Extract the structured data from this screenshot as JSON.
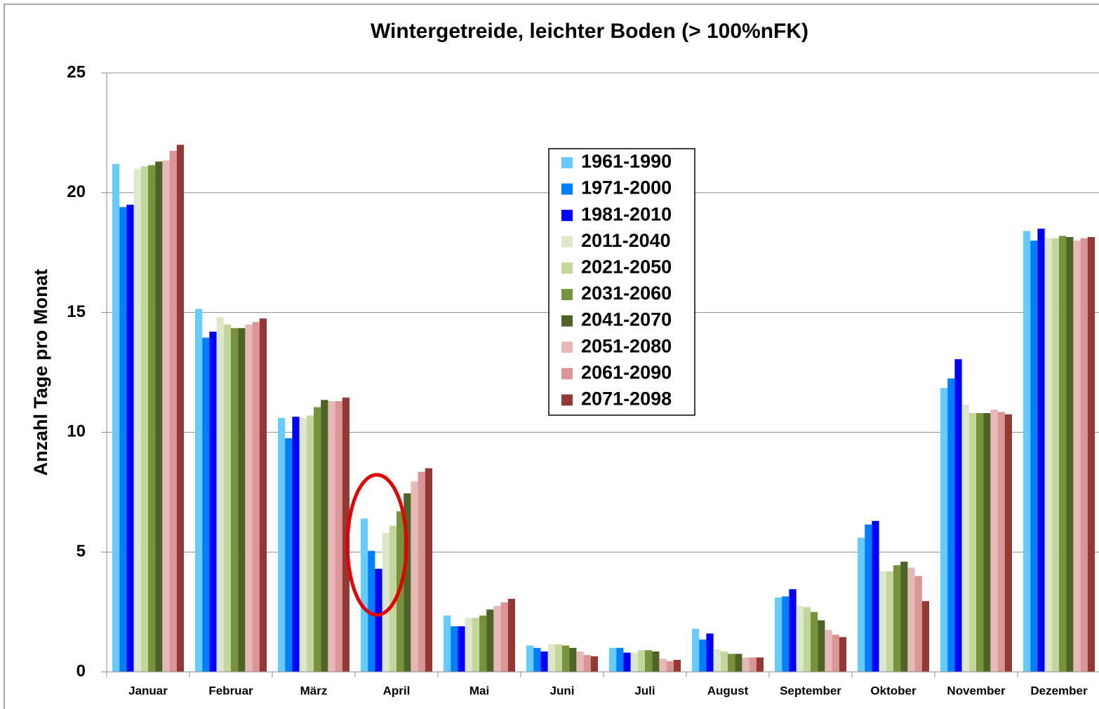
{
  "chart_data": {
    "type": "bar",
    "title": "Wintergetreide, leichter Boden (> 100%nFK)",
    "y_label": "Anzahl Tage pro Monat",
    "categories": [
      "Januar",
      "Februar",
      "März",
      "April",
      "Mai",
      "Juni",
      "Juli",
      "August",
      "September",
      "Oktober",
      "November",
      "Dezember"
    ],
    "series": [
      {
        "name": "1961-1990",
        "color": "#66ccff",
        "values": [
          21.2,
          15.15,
          10.6,
          6.4,
          2.35,
          1.1,
          1.0,
          1.8,
          3.1,
          5.6,
          11.85,
          18.4
        ]
      },
      {
        "name": "1971-2000",
        "color": "#0080ff",
        "values": [
          19.4,
          13.95,
          9.75,
          5.05,
          1.9,
          1.0,
          1.0,
          1.35,
          3.15,
          6.15,
          12.25,
          18.0
        ]
      },
      {
        "name": "1981-2010",
        "color": "#0000ff",
        "values": [
          19.5,
          14.2,
          10.65,
          4.3,
          1.9,
          0.85,
          0.8,
          1.6,
          3.45,
          6.3,
          13.05,
          18.5
        ]
      },
      {
        "name": "2011-2040",
        "color": "#dde8c8",
        "values": [
          21.0,
          14.8,
          10.6,
          5.8,
          2.25,
          1.15,
          0.8,
          0.95,
          2.75,
          4.2,
          11.15,
          18.1
        ]
      },
      {
        "name": "2021-2050",
        "color": "#c4d79b",
        "values": [
          21.1,
          14.5,
          10.7,
          6.1,
          2.25,
          1.15,
          0.9,
          0.85,
          2.7,
          4.2,
          10.8,
          18.1
        ]
      },
      {
        "name": "2031-2060",
        "color": "#77933c",
        "values": [
          21.15,
          14.35,
          11.05,
          6.7,
          2.35,
          1.1,
          0.9,
          0.75,
          2.5,
          4.45,
          10.8,
          18.2
        ]
      },
      {
        "name": "2041-2070",
        "color": "#4f6228",
        "values": [
          21.3,
          14.35,
          11.35,
          7.45,
          2.6,
          1.0,
          0.85,
          0.75,
          2.15,
          4.6,
          10.8,
          18.15
        ]
      },
      {
        "name": "2051-2080",
        "color": "#e6b9b8",
        "values": [
          21.35,
          14.5,
          11.3,
          7.95,
          2.75,
          0.85,
          0.55,
          0.6,
          1.75,
          4.35,
          10.95,
          18.0
        ]
      },
      {
        "name": "2061-2090",
        "color": "#d99694",
        "values": [
          21.75,
          14.6,
          11.3,
          8.35,
          2.9,
          0.7,
          0.45,
          0.6,
          1.55,
          4.0,
          10.85,
          18.1
        ]
      },
      {
        "name": "2071-2098",
        "color": "#953735",
        "values": [
          22.0,
          14.75,
          11.45,
          8.5,
          3.05,
          0.65,
          0.5,
          0.6,
          1.45,
          2.95,
          10.75,
          18.15
        ]
      }
    ],
    "ylim": [
      0,
      25
    ],
    "yticks": [
      0,
      5,
      10,
      15,
      20,
      25
    ],
    "grid": true
  }
}
